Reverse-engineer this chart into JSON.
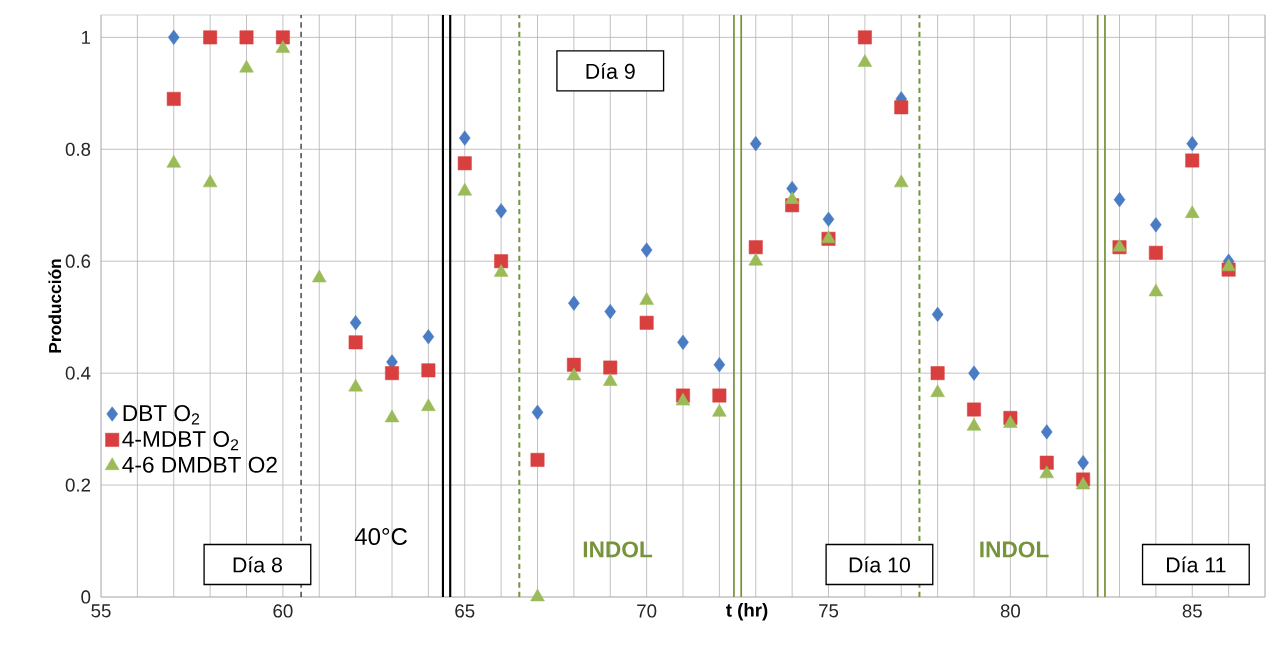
{
  "chart_data": {
    "type": "scatter",
    "xlabel": "t (hr)",
    "ylabel": "Producción",
    "x": [
      57,
      58,
      59,
      60,
      61,
      62,
      63,
      64,
      65,
      66,
      67,
      68,
      69,
      70,
      71,
      72,
      73,
      74,
      75,
      76,
      77,
      78,
      79,
      80,
      81,
      82,
      83,
      84,
      85,
      86
    ],
    "series": [
      {
        "name": "DBT O$_{2}$",
        "color": "#4a7cc4",
        "marker": "diamond",
        "values": [
          1.0,
          null,
          null,
          null,
          null,
          0.49,
          0.42,
          0.465,
          0.82,
          0.69,
          0.33,
          0.525,
          0.51,
          0.62,
          0.455,
          0.415,
          0.81,
          0.73,
          0.675,
          null,
          0.89,
          0.505,
          0.4,
          null,
          0.295,
          0.24,
          0.71,
          0.665,
          0.81,
          0.6
        ]
      },
      {
        "name": "4-MDBT O$_{2}$",
        "color": "#d8403f",
        "marker": "square",
        "values": [
          0.89,
          1.0,
          1.0,
          1.0,
          null,
          0.455,
          0.4,
          0.405,
          0.775,
          0.6,
          0.245,
          0.415,
          0.41,
          0.49,
          0.36,
          0.36,
          0.625,
          0.7,
          0.64,
          1.0,
          0.875,
          0.4,
          0.335,
          0.32,
          0.24,
          0.21,
          0.625,
          0.615,
          0.78,
          0.585
        ]
      },
      {
        "name": "4-6 DMDBT O2",
        "color": "#9bbb59",
        "marker": "triangle",
        "values": [
          0.775,
          0.74,
          0.945,
          0.98,
          0.57,
          0.375,
          0.32,
          0.34,
          0.725,
          0.58,
          0.0,
          0.395,
          0.385,
          0.53,
          0.35,
          0.33,
          0.6,
          0.71,
          0.64,
          0.955,
          0.74,
          0.365,
          0.305,
          0.31,
          0.22,
          0.2,
          0.625,
          0.545,
          0.685,
          0.59
        ]
      }
    ],
    "xlim": [
      55,
      87
    ],
    "xticks": [
      55,
      {
        "value": 56,
        "label": null
      },
      {
        "value": 57,
        "label": null
      },
      {
        "value": 58,
        "label": null
      },
      {
        "value": 59,
        "label": null
      },
      60,
      {
        "value": 61,
        "label": null
      },
      {
        "value": 62,
        "label": null
      },
      {
        "value": 63,
        "label": null
      },
      {
        "value": 64,
        "label": null
      },
      65,
      {
        "value": 66,
        "label": null
      },
      {
        "value": 67,
        "label": null
      },
      {
        "value": 68,
        "label": null
      },
      {
        "value": 69,
        "label": null
      },
      70,
      {
        "value": 71,
        "label": null
      },
      {
        "value": 72,
        "label": null
      },
      {
        "value": 73,
        "label": null
      },
      {
        "value": 74,
        "label": null
      },
      75,
      {
        "value": 76,
        "label": null
      },
      {
        "value": 77,
        "label": null
      },
      {
        "value": 78,
        "label": null
      },
      {
        "value": 79,
        "label": null
      },
      80,
      {
        "value": 81,
        "label": null
      },
      {
        "value": 82,
        "label": null
      },
      {
        "value": 83,
        "label": null
      },
      {
        "value": 84,
        "label": null
      },
      85,
      {
        "value": 86,
        "label": null
      },
      {
        "value": 87,
        "label": null
      }
    ],
    "ylim": [
      0,
      1.04
    ],
    "yticks": [
      0,
      0.2,
      0.4,
      0.6,
      0.8,
      1
    ],
    "grid": true,
    "legend": "left",
    "ref_lines": [
      {
        "axis": "x",
        "value": 60.5,
        "color": "#000000",
        "line_style": "dashed"
      },
      {
        "axis": "x",
        "value": 64.4,
        "color": "#000000",
        "line_style": "solid"
      },
      {
        "axis": "x",
        "value": 64.6,
        "color": "#000000",
        "line_style": "solid"
      },
      {
        "axis": "x",
        "value": 66.5,
        "color": "#77933c",
        "line_style": "dashed"
      },
      {
        "axis": "x",
        "value": 72.4,
        "color": "#77933c",
        "line_style": "solid"
      },
      {
        "axis": "x",
        "value": 72.6,
        "color": "#77933c",
        "line_style": "solid"
      },
      {
        "axis": "x",
        "value": 77.5,
        "color": "#77933c",
        "line_style": "dashed"
      },
      {
        "axis": "x",
        "value": 82.4,
        "color": "#77933c",
        "line_style": "solid"
      },
      {
        "axis": "x",
        "value": 82.6,
        "color": "#77933c",
        "line_style": "solid"
      }
    ],
    "annotations": [
      "Día 8",
      "40°C",
      "Día 9",
      "INDOL",
      "Día 10",
      "INDOL",
      "Día 11"
    ]
  }
}
